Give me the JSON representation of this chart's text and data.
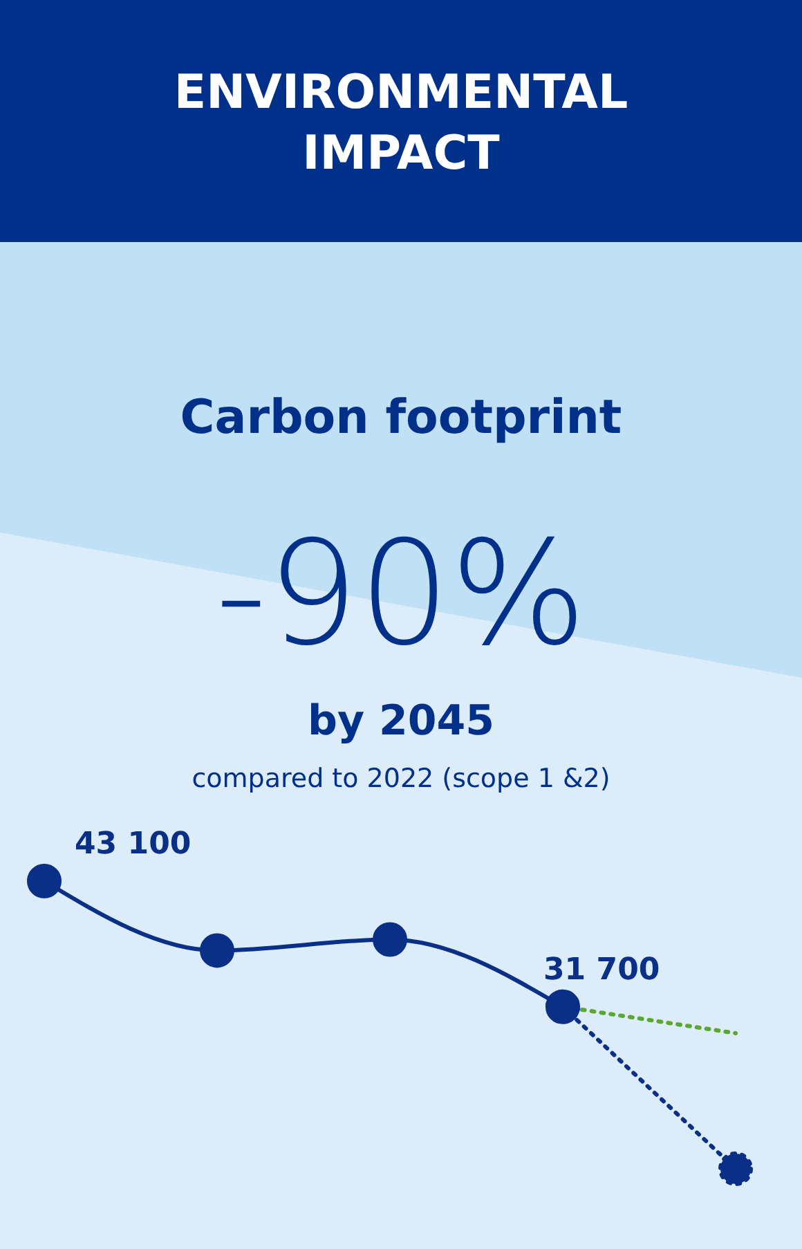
{
  "chart_data": {
    "type": "line",
    "title": "ENVIRONMENTAL IMPACT",
    "subtitle": "Carbon footprint",
    "annotations": [
      "-90%",
      "by 2045",
      "compared to 2022 (scope 1 &2)"
    ],
    "categories": [
      null,
      null,
      null,
      null,
      null
    ],
    "marker": "circle",
    "series": [
      {
        "color": "#0a2f87",
        "values": [
          43100,
          36800,
          37800,
          31700,
          null
        ],
        "value_labels": [
          "43 100",
          null,
          null,
          "31 700",
          null
        ],
        "line_style": "solid"
      },
      {
        "color": "#5aa832",
        "values": [
          null,
          null,
          null,
          31700,
          29300
        ],
        "line_style": "dotted",
        "marker": "none"
      },
      {
        "color": "#0a2f87",
        "values": [
          null,
          null,
          null,
          31700,
          17000
        ],
        "line_style": "dotted"
      }
    ]
  }
}
